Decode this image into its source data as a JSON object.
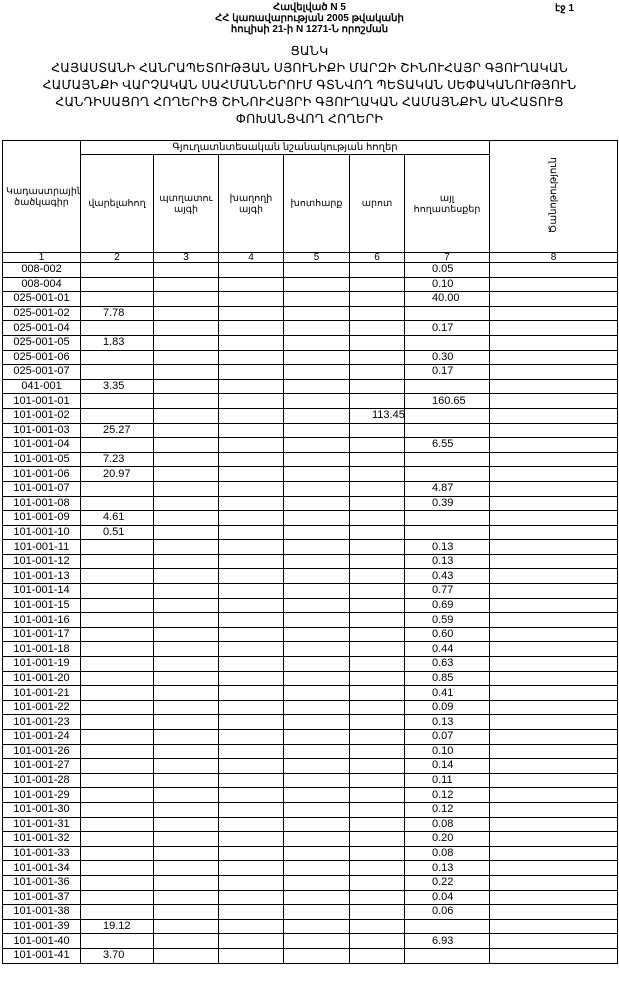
{
  "header": {
    "appendix": "Հավելված N 5",
    "line2": "ՀՀ կառավարության 2005 թվականի",
    "line3": "հուլիսի 21-ի N 1271-Ն որոշման",
    "page": "էջ 1"
  },
  "title": {
    "list": "ՑԱՆԿ",
    "line1": "ՀԱՅԱՍՏԱՆԻ ՀԱՆՐԱՊԵՏՈՒԹՅԱՆ ՍՅՈՒՆԻՔԻ ՄԱՐԶԻ ՇԻՆՈՒՀԱՅՐ ԳՅՈՒՂԱԿԱՆ",
    "line2": "ՀԱՄԱՅՆՔԻ ՎԱՐՉԱԿԱՆ ՍԱՀՄԱՆՆԵՐՈՒՄ ԳՏՆՎՈՂ ՊԵՏԱԿԱՆ ՍԵՓԱԿԱՆՈՒԹՅՈՒՆ",
    "line3": "ՀԱՆԴԻՍԱՑՈՂ ՀՈՂԵՐԻՑ ՇԻՆՈՒՀԱՅՐԻ ԳՅՈՒՂԱԿԱՆ ՀԱՄԱՅՆՔԻՆ ԱՆՀԱՏՈՒՑ",
    "line4": "ՓՈԽԱՆՑՎՈՂ ՀՈՂԵՐԻ"
  },
  "table": {
    "group_header": "Գյուղատնտեսական նշանակության հողեր",
    "columns": [
      "Կադաստրային ծածկագիր",
      "վարելահող",
      "պտղատու այգի",
      "խաղողի այգի",
      "խոտհարք",
      "արոտ",
      "այլ հողատեսքեր",
      "Ծանոթություն"
    ],
    "column_numbers": [
      "1",
      "2",
      "3",
      "4",
      "5",
      "6",
      "7",
      "8"
    ],
    "rows": [
      [
        "008-002",
        "",
        "",
        "",
        "",
        "",
        "0.05",
        ""
      ],
      [
        "008-004",
        "",
        "",
        "",
        "",
        "",
        "0.10",
        ""
      ],
      [
        "025-001-01",
        "",
        "",
        "",
        "",
        "",
        "40.00",
        ""
      ],
      [
        "025-001-02",
        "7.78",
        "",
        "",
        "",
        "",
        "",
        ""
      ],
      [
        "025-001-04",
        "",
        "",
        "",
        "",
        "",
        "0.17",
        ""
      ],
      [
        "025-001-05",
        "1.83",
        "",
        "",
        "",
        "",
        "",
        ""
      ],
      [
        "025-001-06",
        "",
        "",
        "",
        "",
        "",
        "0.30",
        ""
      ],
      [
        "025-001-07",
        "",
        "",
        "",
        "",
        "",
        "0.17",
        ""
      ],
      [
        "041-001",
        "3.35",
        "",
        "",
        "",
        "",
        "",
        ""
      ],
      [
        "101-001-01",
        "",
        "",
        "",
        "",
        "",
        "160.65",
        ""
      ],
      [
        "101-001-02",
        "",
        "",
        "",
        "",
        "113.45",
        "",
        ""
      ],
      [
        "101-001-03",
        "25.27",
        "",
        "",
        "",
        "",
        "",
        ""
      ],
      [
        "101-001-04",
        "",
        "",
        "",
        "",
        "",
        "6.55",
        ""
      ],
      [
        "101-001-05",
        "7.23",
        "",
        "",
        "",
        "",
        "",
        ""
      ],
      [
        "101-001-06",
        "20.97",
        "",
        "",
        "",
        "",
        "",
        ""
      ],
      [
        "101-001-07",
        "",
        "",
        "",
        "",
        "",
        "4.87",
        ""
      ],
      [
        "101-001-08",
        "",
        "",
        "",
        "",
        "",
        "0.39",
        ""
      ],
      [
        "101-001-09",
        "4.61",
        "",
        "",
        "",
        "",
        "",
        ""
      ],
      [
        "101-001-10",
        "0.51",
        "",
        "",
        "",
        "",
        "",
        ""
      ],
      [
        "101-001-11",
        "",
        "",
        "",
        "",
        "",
        "0.13",
        ""
      ],
      [
        "101-001-12",
        "",
        "",
        "",
        "",
        "",
        "0.13",
        ""
      ],
      [
        "101-001-13",
        "",
        "",
        "",
        "",
        "",
        "0.43",
        ""
      ],
      [
        "101-001-14",
        "",
        "",
        "",
        "",
        "",
        "0.77",
        ""
      ],
      [
        "101-001-15",
        "",
        "",
        "",
        "",
        "",
        "0.69",
        ""
      ],
      [
        "101-001-16",
        "",
        "",
        "",
        "",
        "",
        "0.59",
        ""
      ],
      [
        "101-001-17",
        "",
        "",
        "",
        "",
        "",
        "0.60",
        ""
      ],
      [
        "101-001-18",
        "",
        "",
        "",
        "",
        "",
        "0.44",
        ""
      ],
      [
        "101-001-19",
        "",
        "",
        "",
        "",
        "",
        "0.63",
        ""
      ],
      [
        "101-001-20",
        "",
        "",
        "",
        "",
        "",
        "0.85",
        ""
      ],
      [
        "101-001-21",
        "",
        "",
        "",
        "",
        "",
        "0.41",
        ""
      ],
      [
        "101-001-22",
        "",
        "",
        "",
        "",
        "",
        "0.09",
        ""
      ],
      [
        "101-001-23",
        "",
        "",
        "",
        "",
        "",
        "0.13",
        ""
      ],
      [
        "101-001-24",
        "",
        "",
        "",
        "",
        "",
        "0.07",
        ""
      ],
      [
        "101-001-26",
        "",
        "",
        "",
        "",
        "",
        "0.10",
        ""
      ],
      [
        "101-001-27",
        "",
        "",
        "",
        "",
        "",
        "0.14",
        ""
      ],
      [
        "101-001-28",
        "",
        "",
        "",
        "",
        "",
        "0.11",
        ""
      ],
      [
        "101-001-29",
        "",
        "",
        "",
        "",
        "",
        "0.12",
        ""
      ],
      [
        "101-001-30",
        "",
        "",
        "",
        "",
        "",
        "0.12",
        ""
      ],
      [
        "101-001-31",
        "",
        "",
        "",
        "",
        "",
        "0.08",
        ""
      ],
      [
        "101-001-32",
        "",
        "",
        "",
        "",
        "",
        "0.20",
        ""
      ],
      [
        "101-001-33",
        "",
        "",
        "",
        "",
        "",
        "0.08",
        ""
      ],
      [
        "101-001-34",
        "",
        "",
        "",
        "",
        "",
        "0.13",
        ""
      ],
      [
        "101-001-36",
        "",
        "",
        "",
        "",
        "",
        "0.22",
        ""
      ],
      [
        "101-001-37",
        "",
        "",
        "",
        "",
        "",
        "0.04",
        ""
      ],
      [
        "101-001-38",
        "",
        "",
        "",
        "",
        "",
        "0.06",
        ""
      ],
      [
        "101-001-39",
        "19.12",
        "",
        "",
        "",
        "",
        "",
        ""
      ],
      [
        "101-001-40",
        "",
        "",
        "",
        "",
        "",
        "6.93",
        ""
      ],
      [
        "101-001-41",
        "3.70",
        "",
        "",
        "",
        "",
        "",
        ""
      ]
    ]
  }
}
